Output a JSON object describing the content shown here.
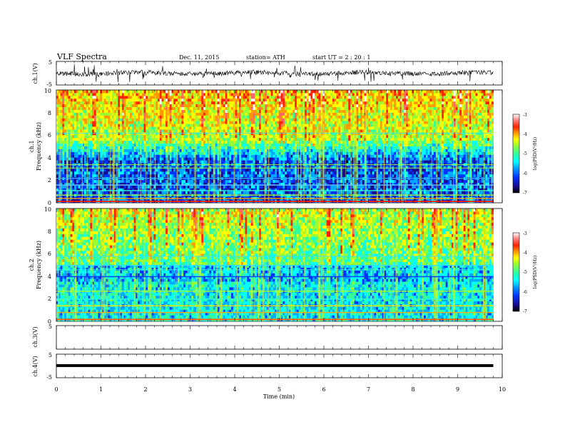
{
  "header": {
    "title": "VLF  Spectra",
    "date": "Dec. 11, 2015",
    "station": "station= ATH",
    "start": "start  UT  =   2  : 20 : 1"
  },
  "colors": {
    "spectrogram_ramp": [
      "#000000",
      "#1a0a8c",
      "#0033ff",
      "#00aaff",
      "#00ffff",
      "#33ff99",
      "#99ff33",
      "#ffff00",
      "#ff9900",
      "#ff2200",
      "#ff6666",
      "#ffffff"
    ]
  },
  "chart_data": [
    {
      "type": "line",
      "name": "ch1-waveform",
      "ylabel": "ch.1(V)",
      "yticks": [
        "5",
        "-5"
      ],
      "ylim": [
        -5,
        5
      ],
      "baseline": 0
    },
    {
      "type": "heatmap",
      "name": "ch1-spectrogram",
      "ylabel_channel": "ch.1",
      "ylabel": "Frequency (kHz)",
      "yticks": [
        "0",
        "2",
        "4",
        "6",
        "8",
        "10"
      ],
      "ylim": [
        0,
        10
      ],
      "colorbar": {
        "label": "log(PSD(V²/Hz)",
        "ticks": [
          "-3",
          "-4",
          "-5",
          "-6",
          "-7"
        ],
        "range": [
          -7,
          -3
        ]
      }
    },
    {
      "type": "heatmap",
      "name": "ch2-spectrogram",
      "ylabel_channel": "ch.2",
      "ylabel": "Frequency (kHz)",
      "yticks": [
        "0",
        "2",
        "4",
        "6",
        "8",
        "10"
      ],
      "ylim": [
        0,
        10
      ],
      "colorbar": {
        "label": "log(PSD(V²/Hz)",
        "ticks": [
          "-3",
          "-4",
          "-5",
          "-6",
          "-7"
        ],
        "range": [
          -7,
          -3
        ]
      }
    },
    {
      "type": "line",
      "name": "ch3-waveform",
      "ylabel": "ch.3(V)",
      "yticks": [
        "5"
      ],
      "ylim": [
        -5,
        5
      ]
    },
    {
      "type": "line",
      "name": "ch4-waveform",
      "ylabel": "ch.4(V)",
      "yticks": [
        "5",
        "-5"
      ],
      "ylim": [
        -5,
        5
      ],
      "baseline": 0
    }
  ],
  "xaxis": {
    "label": "Time  (min)",
    "ticks": [
      "0",
      "1",
      "2",
      "3",
      "4",
      "5",
      "6",
      "7",
      "8",
      "9",
      "10"
    ],
    "xlim": [
      0,
      10
    ],
    "data_end": 9.8
  }
}
